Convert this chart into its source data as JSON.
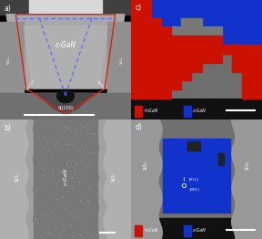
{
  "fig_width": 2.88,
  "fig_height": 2.62,
  "dpi": 100,
  "panels": [
    "a",
    "b",
    "c",
    "d"
  ],
  "panel_a": {
    "gan_text": "c-GaN",
    "red_poly_color": "#dd2211",
    "blue_dashed_color": "#5566ff",
    "si100_label": "Si(100)",
    "si111_left": "Si(111)",
    "si111_right": "Si(1̅1̅)",
    "sio2_left": "SiO₂",
    "sio2_right": "SiO₂"
  },
  "panel_b": {
    "sio2_left": "SiO₂",
    "sio2_right": "SiO₂",
    "cgan_label": "c-GaN"
  },
  "panel_c": {
    "blue_color": "#1133cc",
    "red_color": "#cc1100",
    "legend_h_label": "h-GaN",
    "legend_c_label": "c-GaN"
  },
  "panel_d": {
    "blue_color": "#1133cc",
    "red_color": "#cc1100",
    "legend_h_label": "h-GaN",
    "legend_c_label": "c-GaN",
    "sio2_left": "SiO₂",
    "sio2_right": "SiO₂",
    "index_label": "{001}",
    "index_label2": "[011]"
  }
}
